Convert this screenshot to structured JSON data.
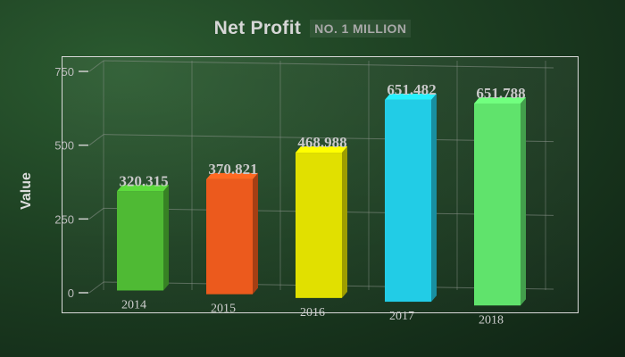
{
  "chart_data": {
    "type": "bar",
    "title": "Net Profit",
    "subtitle": "NO. 1 MILLION",
    "xlabel": "",
    "ylabel": "Value",
    "categories": [
      "2014",
      "2015",
      "2016",
      "2017",
      "2018"
    ],
    "values": [
      320.315,
      370.821,
      468.988,
      651.482,
      651.788
    ],
    "value_labels": [
      "320.315",
      "370.821",
      "468.988",
      "651.482",
      "651.788"
    ],
    "colors": [
      "#4fba34",
      "#ec5a1d",
      "#e1e000",
      "#22cce6",
      "#60e36c"
    ],
    "yticks": [
      "0",
      "250",
      "500",
      "750"
    ],
    "ylim": [
      0,
      750
    ],
    "grid": true,
    "legend": "none",
    "style": "3d"
  }
}
